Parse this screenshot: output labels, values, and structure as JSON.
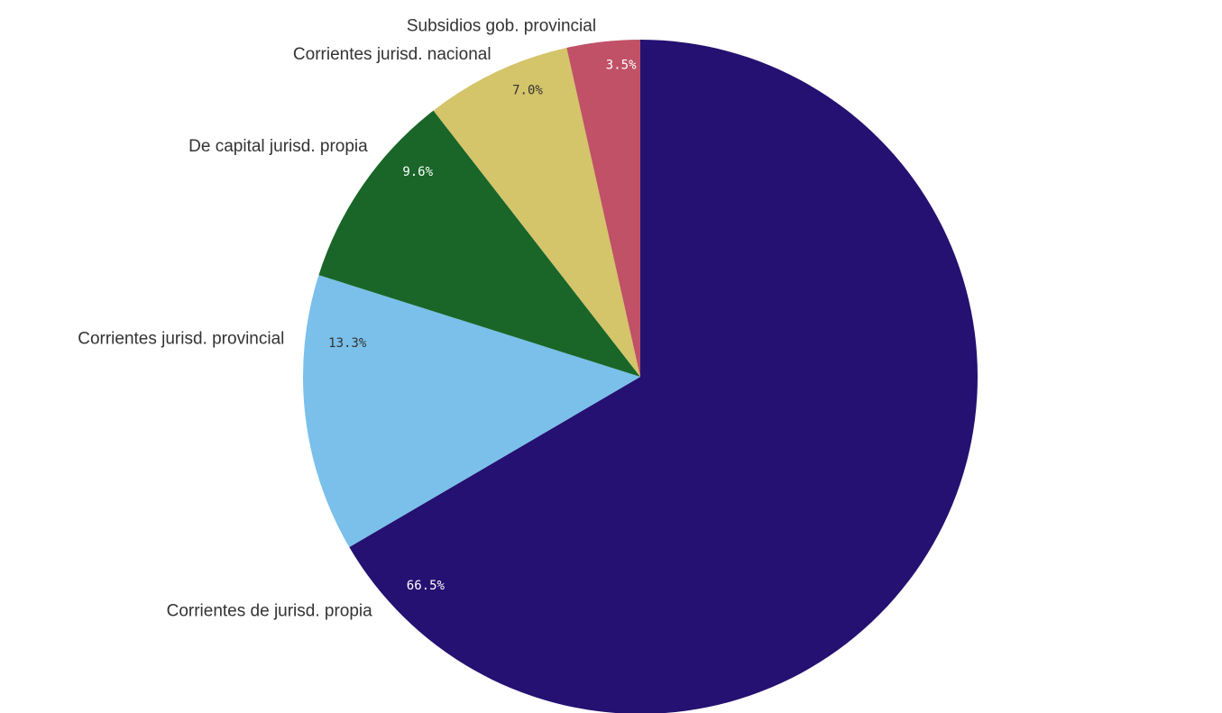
{
  "chart_data": {
    "type": "pie",
    "title": "",
    "slices": [
      {
        "label": "Corrientes de jurisd. propia",
        "value": 66.5,
        "value_label": "66.5%",
        "color": "#241171",
        "text_color": "#ffffff"
      },
      {
        "label": "Corrientes jurisd. provincial",
        "value": 13.3,
        "value_label": "13.3%",
        "color": "#7ac0ea",
        "text_color": "#333333"
      },
      {
        "label": "De capital jurisd. propia",
        "value": 9.6,
        "value_label": "9.6%",
        "color": "#196628",
        "text_color": "#ffffff"
      },
      {
        "label": "Corrientes jurisd. nacional",
        "value": 7.0,
        "value_label": "7.0%",
        "color": "#d4c46a",
        "text_color": "#333333"
      },
      {
        "label": "Subsidios gob. provincial",
        "value": 3.5,
        "value_label": "3.5%",
        "color": "#c05166",
        "text_color": "#ffffff"
      }
    ],
    "start_angle": "12 o'clock",
    "direction": "clockwise",
    "legend": "none"
  }
}
